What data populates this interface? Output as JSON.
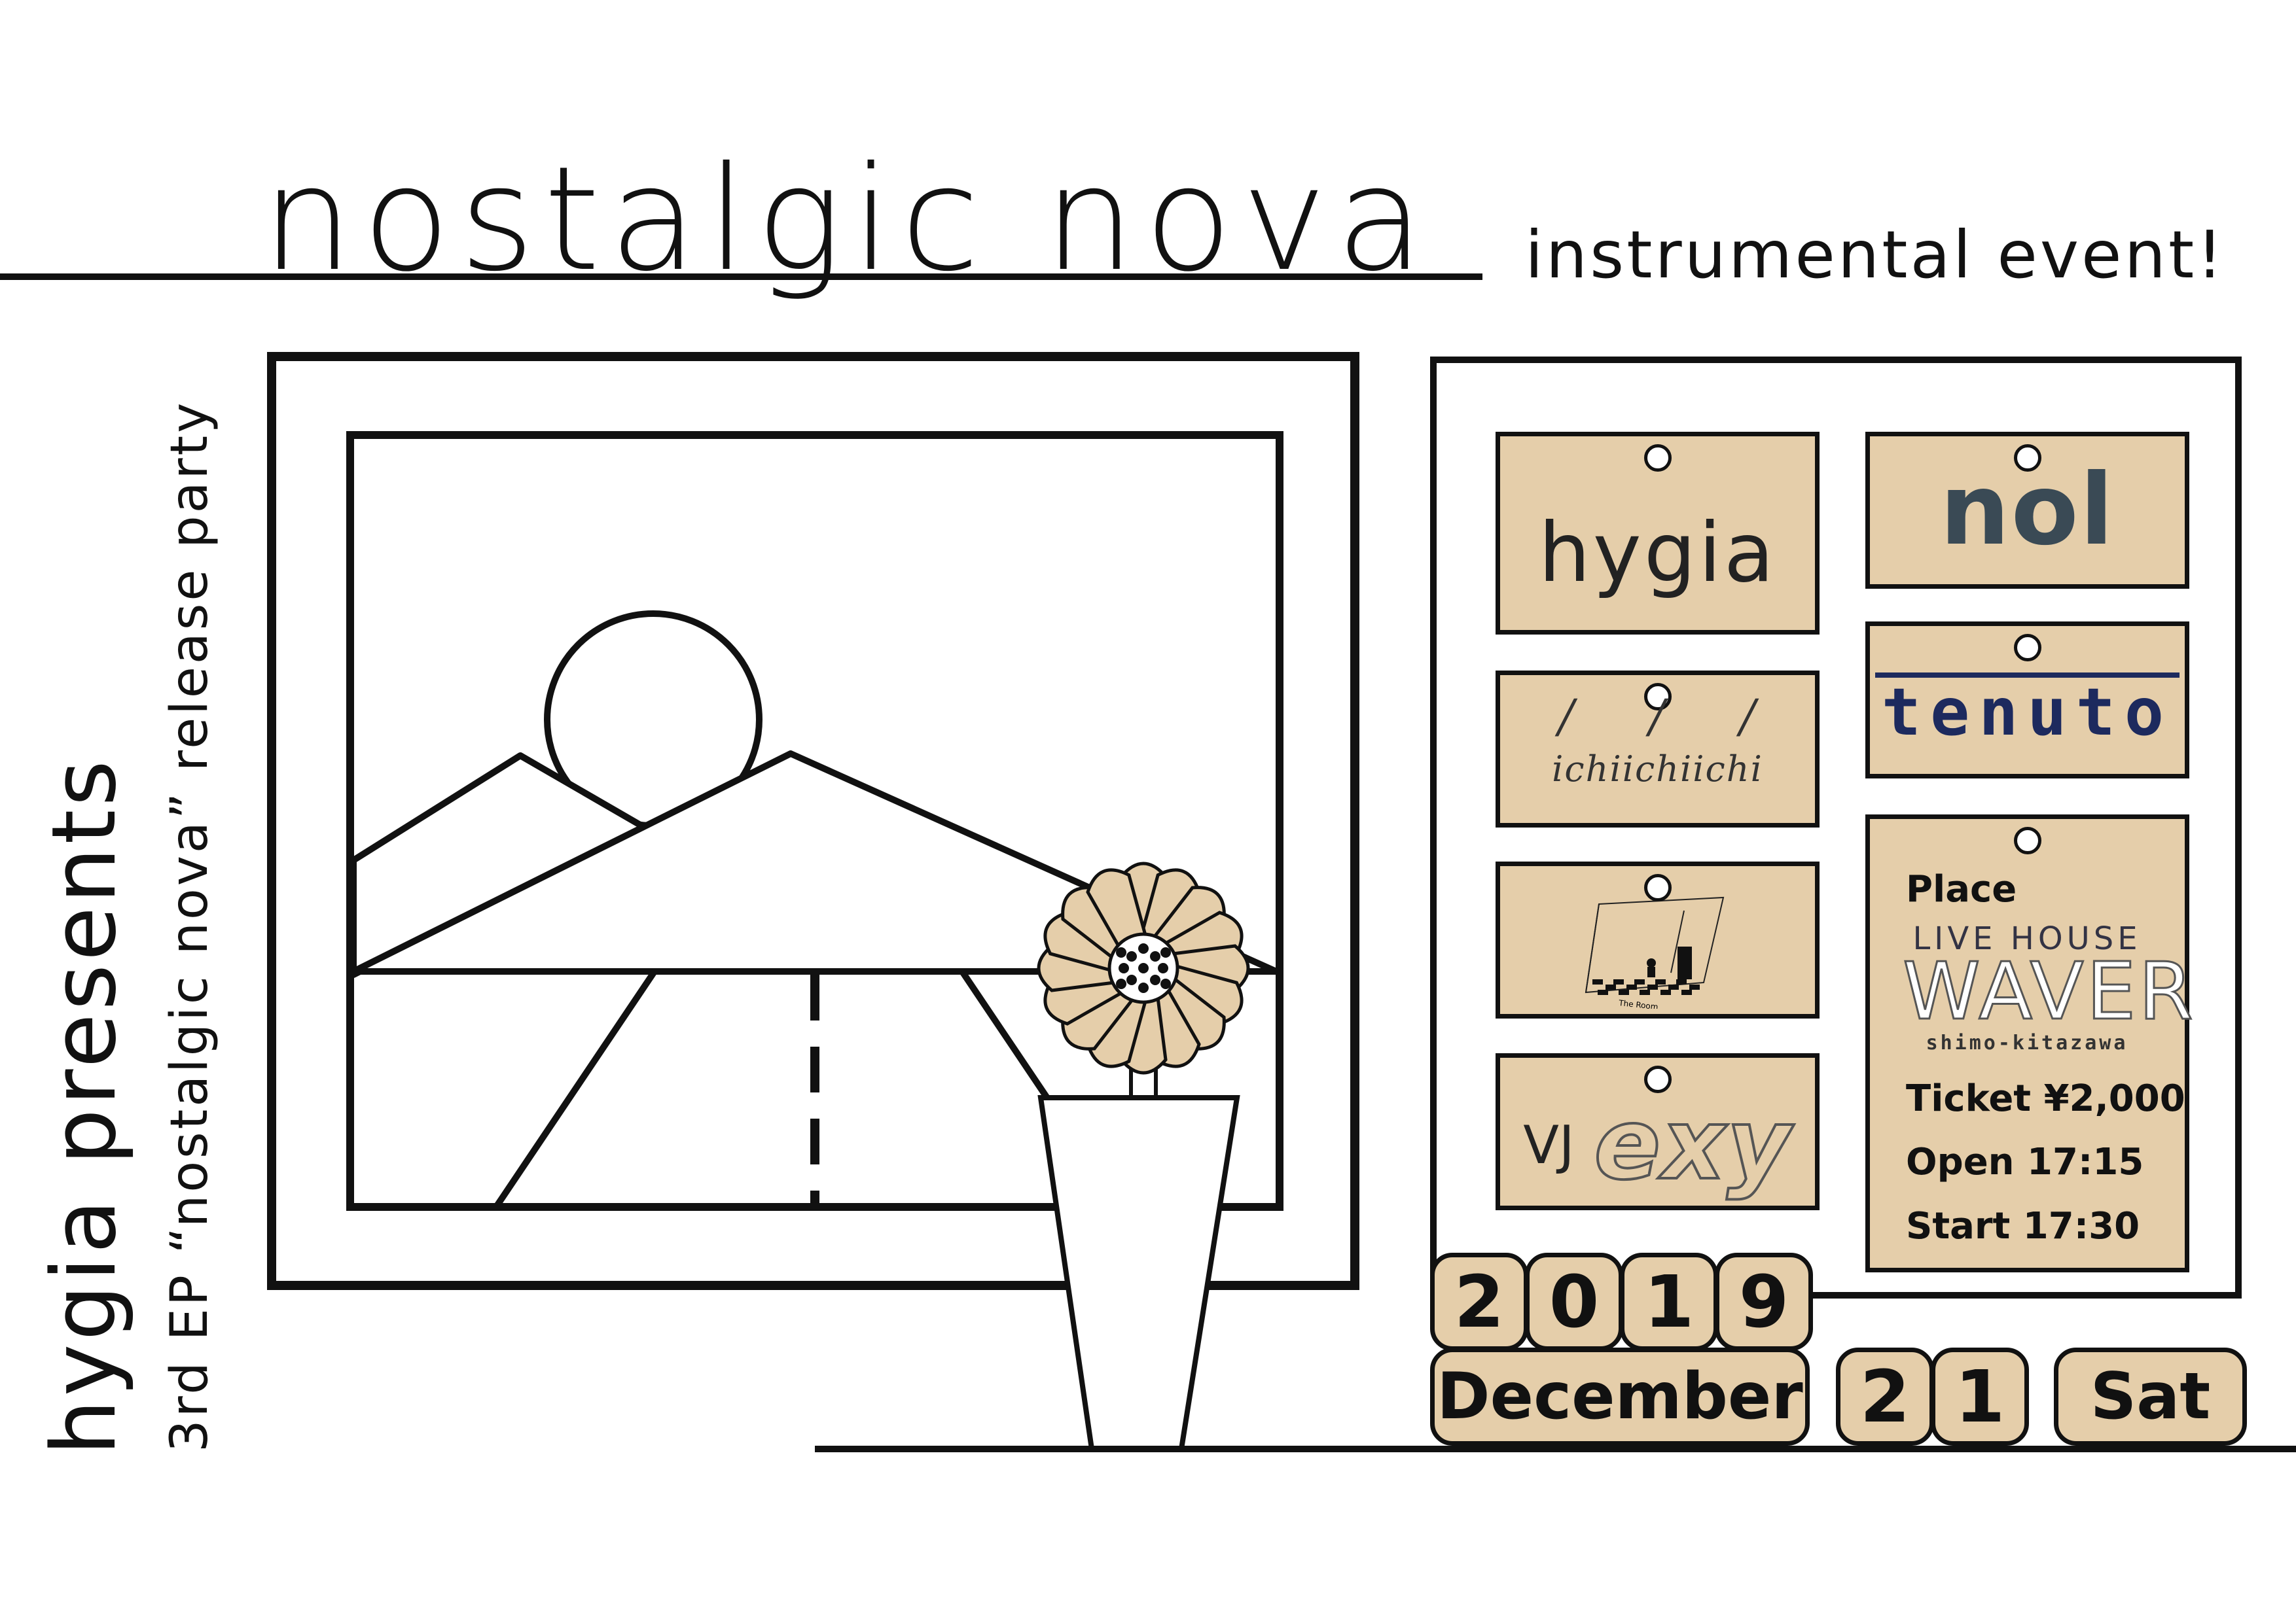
{
  "event": {
    "title": "nostalgic nova",
    "subtitle": "instrumental event!",
    "presents": "hygia presents",
    "release": "3rd EP “nostalgic nova” release party"
  },
  "lineup": {
    "hygia": "hygia",
    "nol": "nol",
    "ichiichiichi": "ichiichiichi",
    "tenuto": "tenuto",
    "vj_prefix": "VJ",
    "vj_name": "exy",
    "art_caption": "The Room"
  },
  "info": {
    "place_label": "Place",
    "venue_line1": "LIVE HOUSE",
    "venue_line2": "WAVER",
    "venue_line3": "shimo-kitazawa",
    "ticket": "Ticket ¥2,000",
    "open": "Open 17:15",
    "start": "Start 17:30"
  },
  "date": {
    "year_digits": [
      "2",
      "0",
      "1",
      "9"
    ],
    "month": "December",
    "day_digits": [
      "2",
      "1"
    ],
    "weekday": "Sat"
  },
  "colors": {
    "tag_fill": "#e5ceaa",
    "ink": "#111111",
    "tenuto_blue": "#1d2a5e"
  }
}
